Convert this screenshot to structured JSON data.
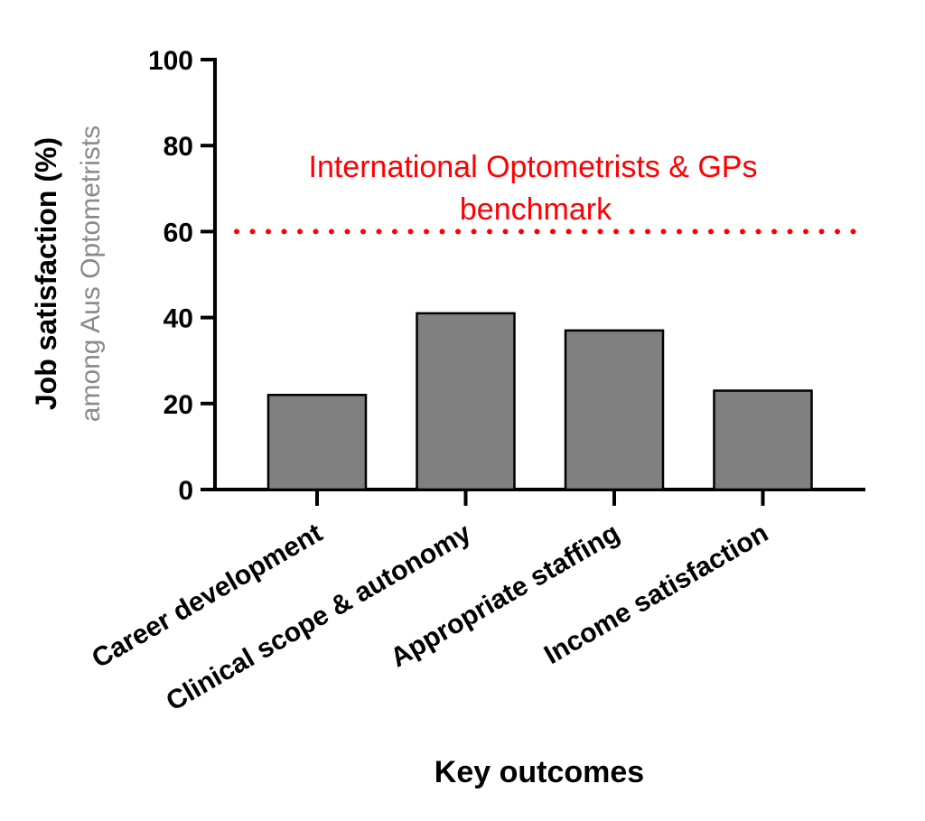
{
  "chart_data": {
    "type": "bar",
    "categories": [
      "Career development",
      "Clinical scope & autonomy",
      "Appropriate staffing",
      "Income satisfaction"
    ],
    "values": [
      22,
      41,
      37,
      23
    ],
    "ylabel": "Job satisfaction (%)",
    "ylabel_sub": "among Aus Optometrists",
    "xlabel": "Key outcomes",
    "ylim": [
      0,
      100
    ],
    "yticks": [
      0,
      20,
      40,
      60,
      80,
      100
    ],
    "grid": false,
    "bar_color": "#808080",
    "benchmark": {
      "value": 60,
      "label_lines": [
        "International Optometrists & GPs",
        "benchmark"
      ],
      "color": "#ff0000",
      "style": "dotted"
    }
  }
}
